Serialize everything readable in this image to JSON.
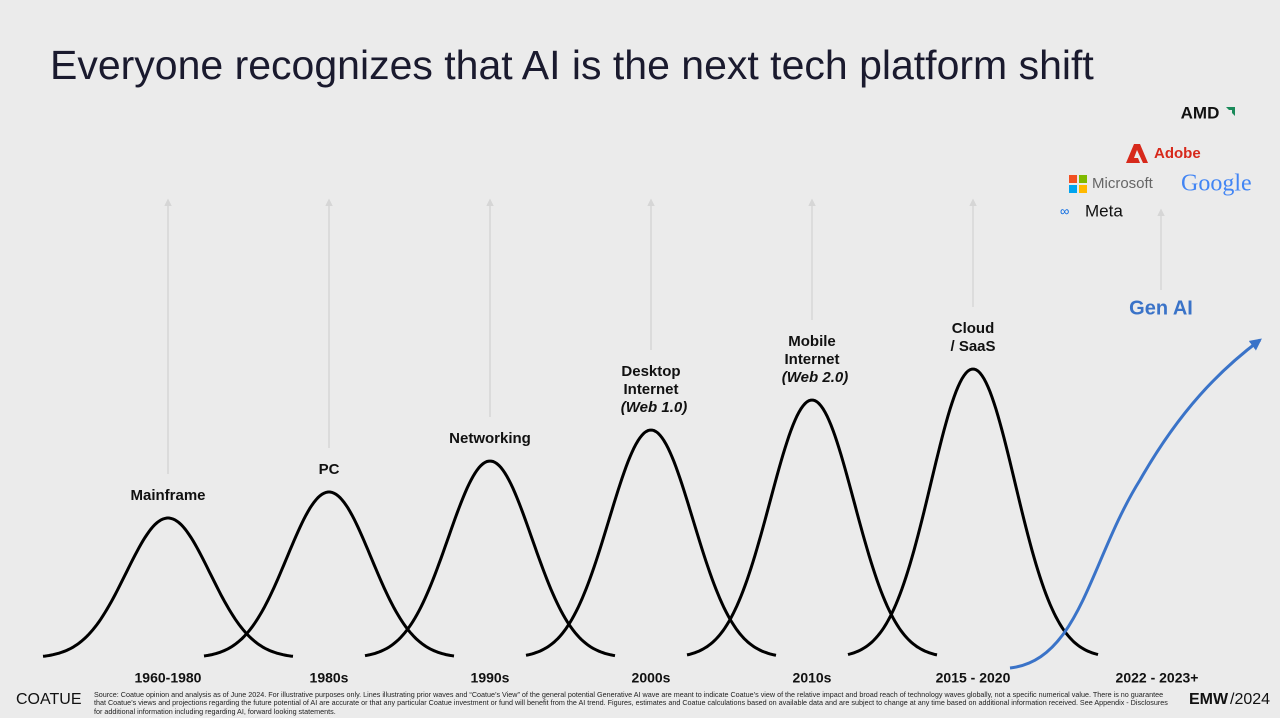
{
  "title": "Everyone recognizes that AI is the next tech platform shift",
  "waves": [
    {
      "label": "Mainframe",
      "era": "1960-1980"
    },
    {
      "label": "PC",
      "era": "1980s"
    },
    {
      "label": "Networking",
      "era": "1990s"
    },
    {
      "label": "Desktop Internet",
      "sublabel": "(Web 1.0)",
      "era": "2000s"
    },
    {
      "label": "Mobile Internet",
      "sublabel": "(Web 2.0)",
      "era": "2010s"
    },
    {
      "label": "Cloud / SaaS",
      "era": "2015 - 2020"
    }
  ],
  "gen_ai": {
    "label": "Gen AI",
    "era": "2022 - 2023+"
  },
  "logos": {
    "amd": "AMD",
    "adobe": "Adobe",
    "microsoft": "Microsoft",
    "google": "Google",
    "meta": "Meta"
  },
  "footer": {
    "brand": "COATUE",
    "source": "Source: Coatue opinion and analysis as of June 2024. For illustrative purposes only. Lines illustrating prior waves and “Coatue’s View” of the general potential Generative AI wave are meant to indicate Coatue’s view of the relative impact and broad reach of technology waves globally, not a specific numerical value. There is no guarantee that Coatue’s views and projections regarding the future potential of AI are accurate or that any particular Coatue investment or fund will benefit from the AI trend.  Figures, estimates and Coatue calculations based on available data and are subject to change at any time based on additional information received. See Appendix - Disclosures for additional information including regarding AI, forward looking statements.",
    "event": "EMW",
    "year": "/2024"
  }
}
